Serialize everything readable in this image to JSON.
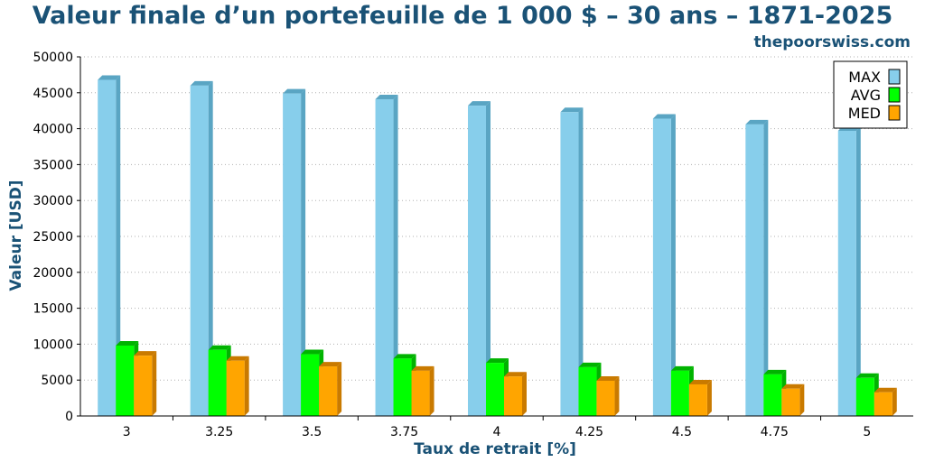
{
  "chart_data": {
    "type": "bar",
    "title": "Valeur finale d’un portefeuille de 1 000 $ – 30 ans – 1871-2025",
    "source": "thepoorswiss.com",
    "xlabel": "Taux de retrait [%]",
    "ylabel": "Valeur [USD]",
    "categories": [
      "3",
      "3.25",
      "3.5",
      "3.75",
      "4",
      "4.25",
      "4.5",
      "4.75",
      "5"
    ],
    "ylim": [
      0,
      50000
    ],
    "yticks": [
      0,
      5000,
      10000,
      15000,
      20000,
      25000,
      30000,
      35000,
      40000,
      45000,
      50000
    ],
    "grid": true,
    "legend_position": "top-right",
    "series": [
      {
        "name": "MAX",
        "color": "#87ceeb",
        "side_color": "#5aa5c3",
        "values": [
          46800,
          46000,
          44900,
          44100,
          43200,
          42300,
          41400,
          40600,
          39700
        ]
      },
      {
        "name": "AVG",
        "color": "#00ff00",
        "side_color": "#00b300",
        "values": [
          9800,
          9200,
          8600,
          8000,
          7400,
          6800,
          6300,
          5800,
          5300
        ]
      },
      {
        "name": "MED",
        "color": "#ffa500",
        "side_color": "#c97a00",
        "values": [
          8400,
          7700,
          6900,
          6300,
          5500,
          4900,
          4400,
          3800,
          3300
        ]
      }
    ]
  }
}
